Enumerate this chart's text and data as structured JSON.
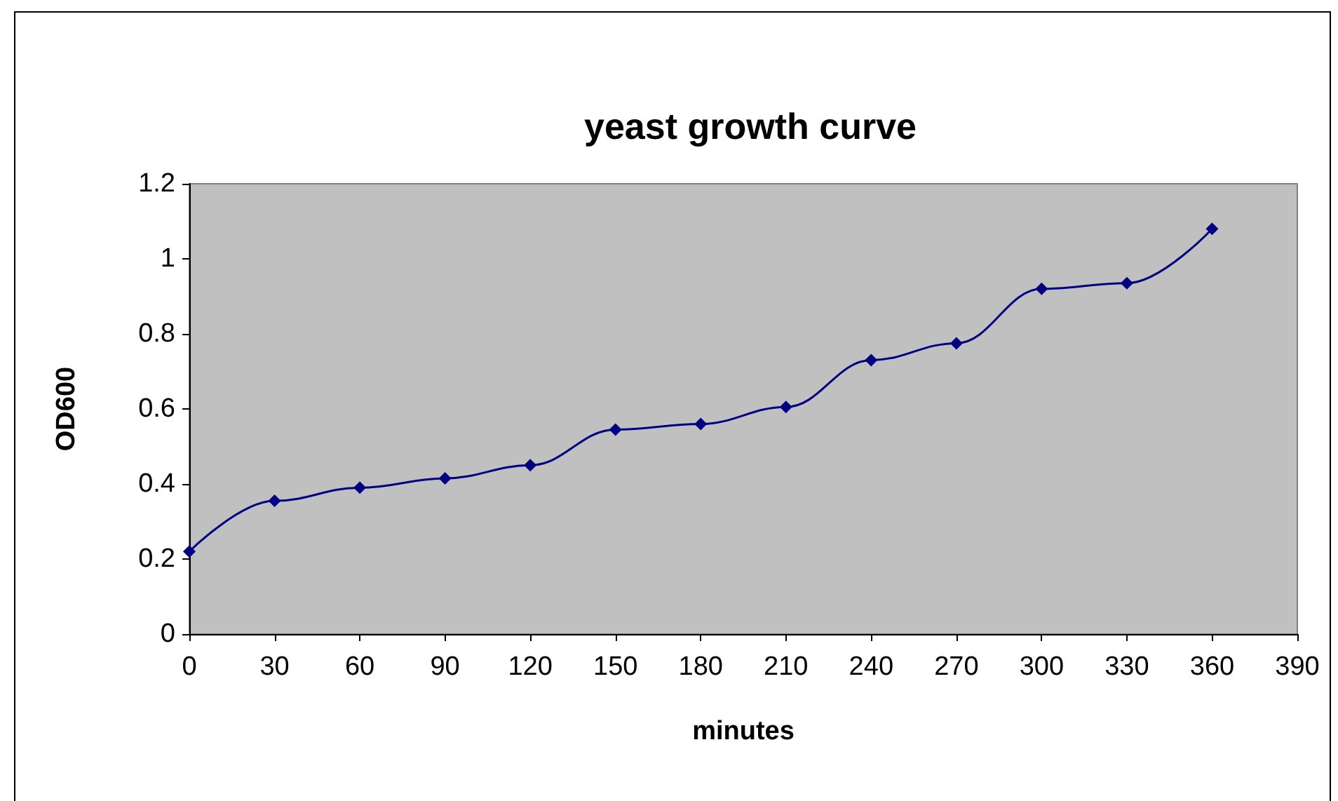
{
  "chart_data": {
    "type": "line",
    "title": "yeast growth curve",
    "xlabel": "minutes",
    "ylabel": "OD600",
    "x": [
      0,
      30,
      60,
      90,
      120,
      150,
      180,
      210,
      240,
      270,
      300,
      330,
      360
    ],
    "series": [
      {
        "color": "#000080",
        "values": [
          0.22,
          0.355,
          0.39,
          0.415,
          0.45,
          0.545,
          0.56,
          0.605,
          0.73,
          0.775,
          0.92,
          0.935,
          1.08
        ]
      }
    ],
    "xlim": [
      0,
      390
    ],
    "xticks": [
      0,
      30,
      60,
      90,
      120,
      150,
      180,
      210,
      240,
      270,
      300,
      330,
      360,
      390
    ],
    "ylim": [
      0,
      1.2
    ],
    "yticks": [
      0,
      0.2,
      0.4,
      0.6,
      0.8,
      1,
      1.2
    ],
    "marker": "diamond",
    "line_style": "solid"
  }
}
